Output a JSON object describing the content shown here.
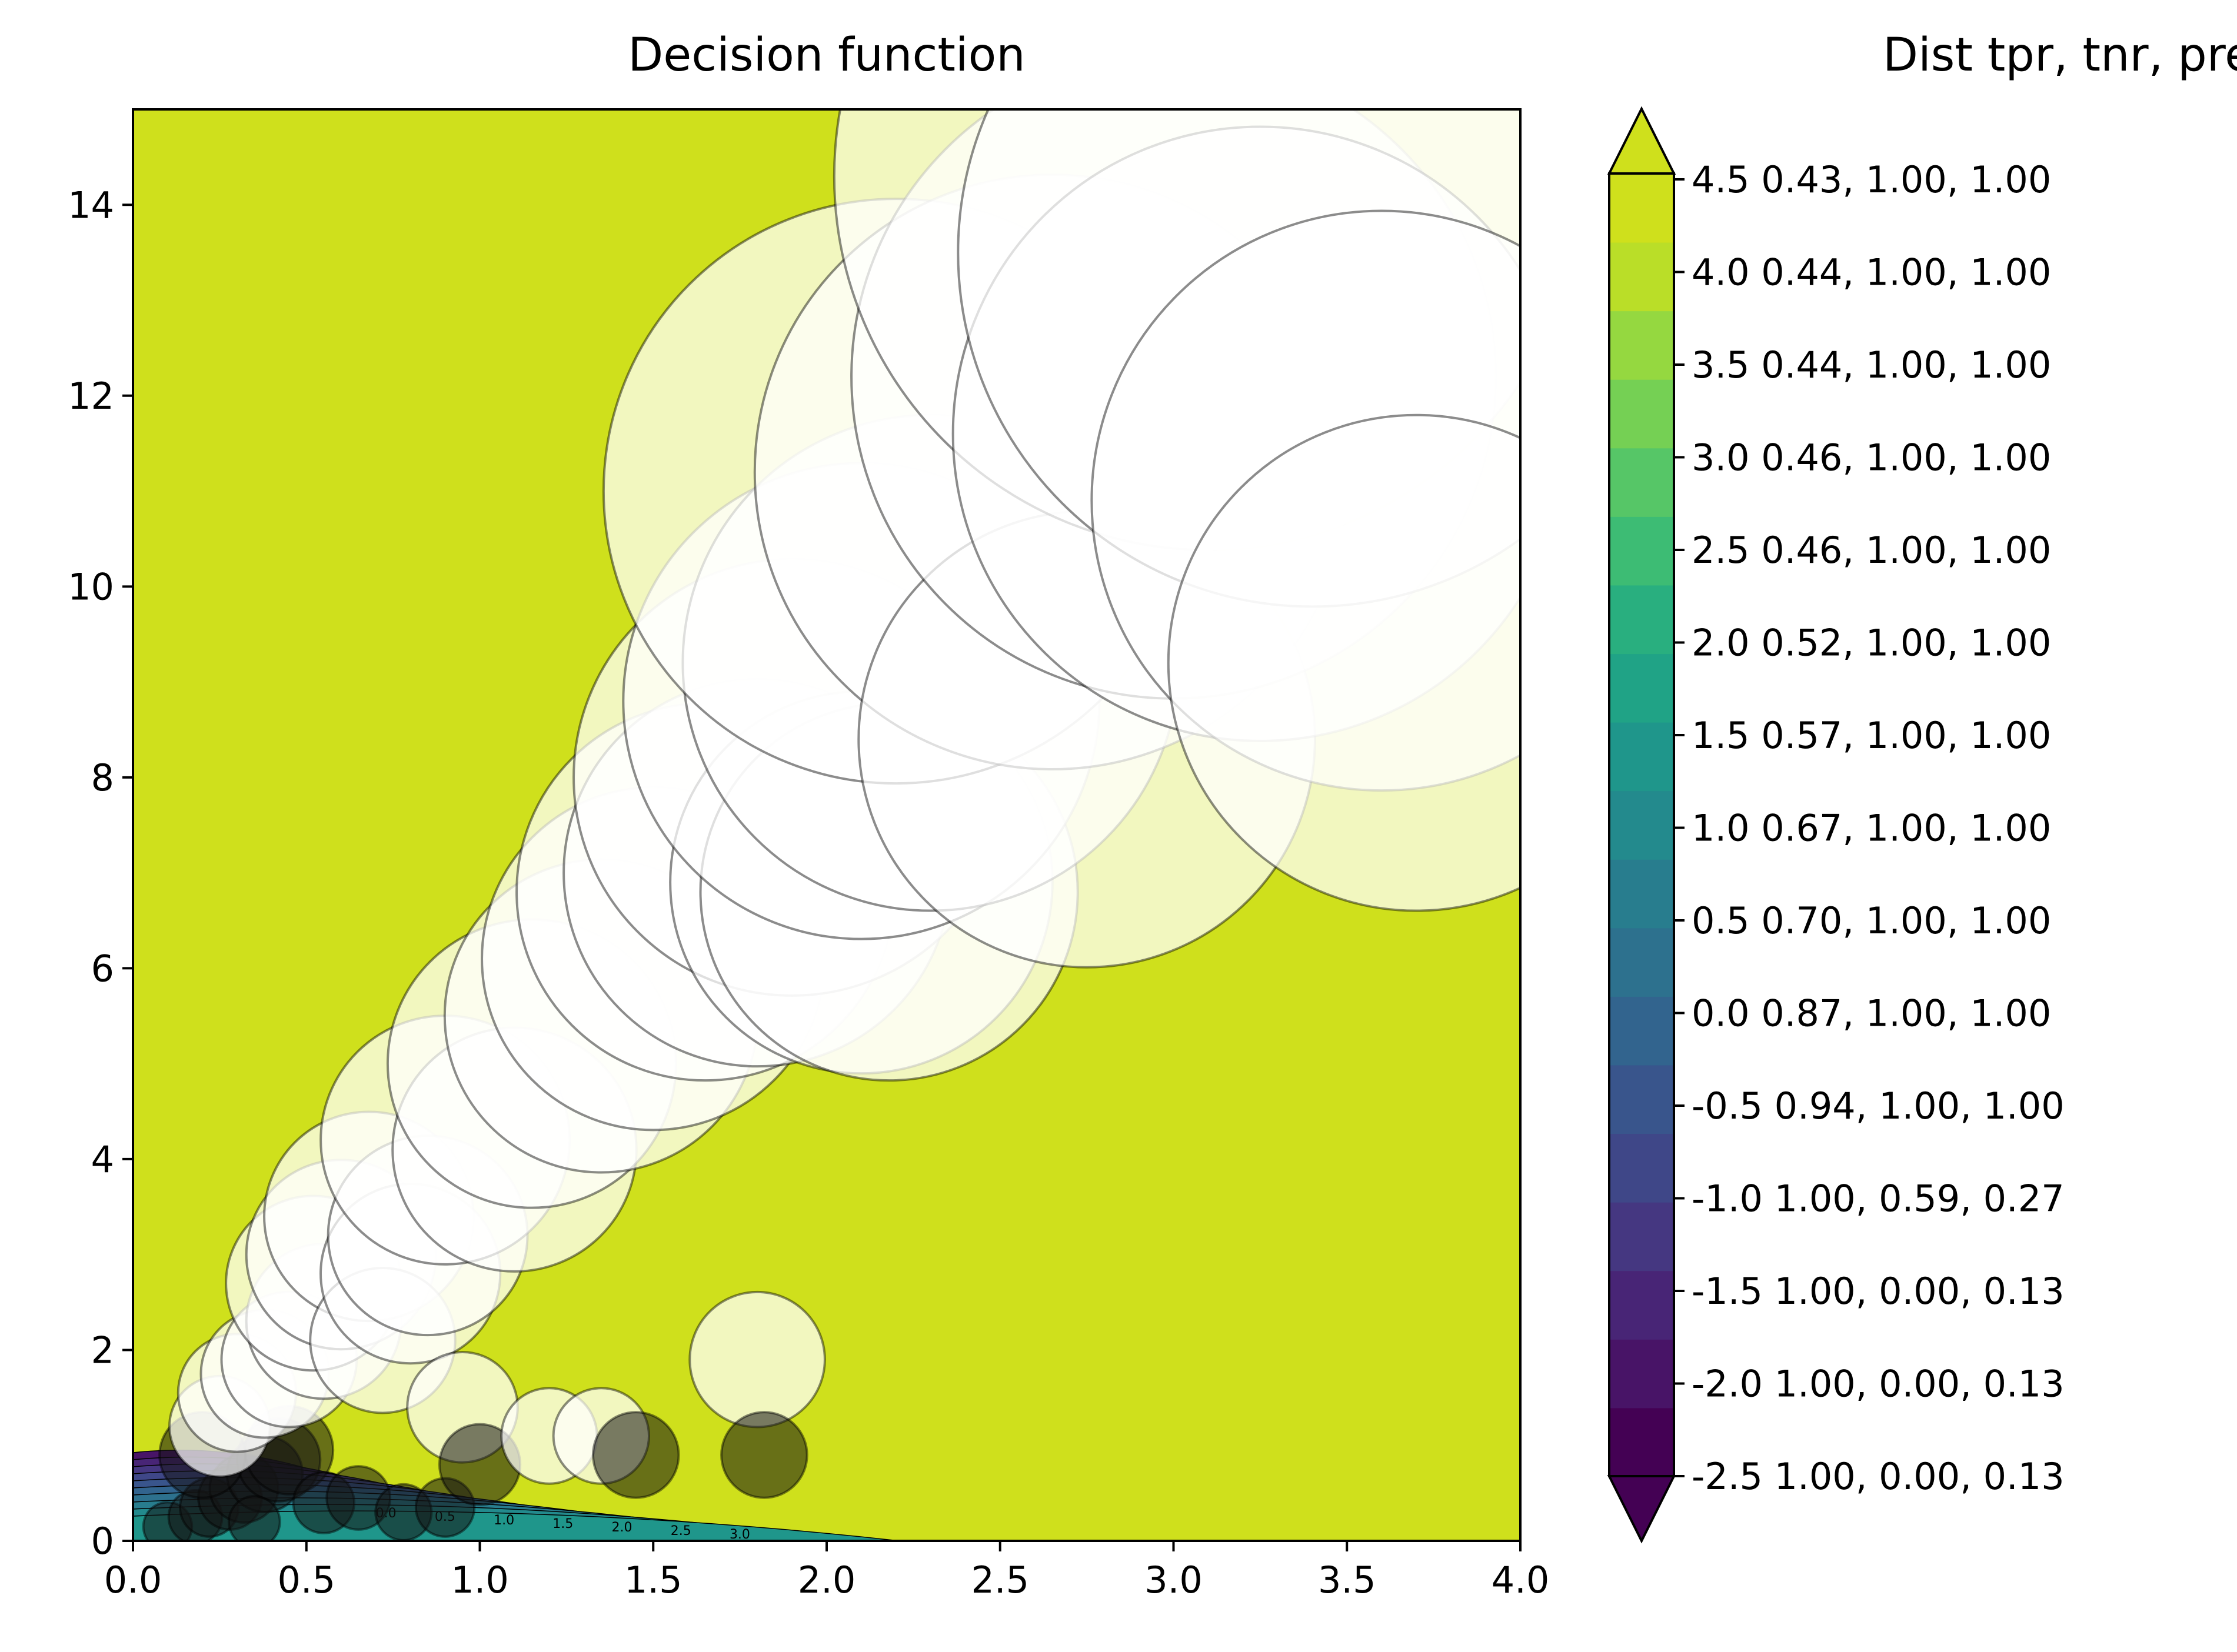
{
  "chart_data": {
    "type": "scatter",
    "title": "Decision function",
    "xlabel": "",
    "ylabel": "",
    "xlim": [
      0.0,
      4.0
    ],
    "ylim": [
      0,
      15
    ],
    "x_ticks": [
      "0.0",
      "0.5",
      "1.0",
      "1.5",
      "2.0",
      "2.5",
      "3.0",
      "3.5",
      "4.0"
    ],
    "y_ticks": [
      "0",
      "2",
      "4",
      "6",
      "8",
      "10",
      "12",
      "14"
    ],
    "background_color": "#cfe01c",
    "marker_face_color": "#ffffff",
    "marker_edge_color": "#000000",
    "contour_labels": [
      "0.0",
      "0.5",
      "1.0",
      "1.5",
      "2.0",
      "2.5",
      "3.0"
    ],
    "series": [
      {
        "values_note": "",
        "points": [
          {
            "x": 0.1,
            "y": 0.15
          },
          {
            "x": 0.18,
            "y": 0.25
          },
          {
            "x": 0.22,
            "y": 0.35
          },
          {
            "x": 0.28,
            "y": 0.45
          },
          {
            "x": 0.32,
            "y": 0.55
          },
          {
            "x": 0.38,
            "y": 0.7
          },
          {
            "x": 0.42,
            "y": 0.85
          },
          {
            "x": 0.45,
            "y": 0.95
          },
          {
            "x": 0.35,
            "y": 0.2
          },
          {
            "x": 0.55,
            "y": 0.4
          },
          {
            "x": 0.65,
            "y": 0.45
          },
          {
            "x": 0.78,
            "y": 0.3
          },
          {
            "x": 0.9,
            "y": 0.35
          },
          {
            "x": 0.2,
            "y": 0.9
          },
          {
            "x": 0.25,
            "y": 1.2
          },
          {
            "x": 0.3,
            "y": 1.55
          },
          {
            "x": 0.38,
            "y": 1.75
          },
          {
            "x": 0.45,
            "y": 1.9
          },
          {
            "x": 0.55,
            "y": 2.3
          },
          {
            "x": 0.52,
            "y": 2.7
          },
          {
            "x": 0.6,
            "y": 3.0
          },
          {
            "x": 0.68,
            "y": 3.4
          },
          {
            "x": 0.72,
            "y": 2.1
          },
          {
            "x": 0.8,
            "y": 2.8
          },
          {
            "x": 0.85,
            "y": 3.2
          },
          {
            "x": 0.9,
            "y": 4.2
          },
          {
            "x": 1.1,
            "y": 4.1
          },
          {
            "x": 1.15,
            "y": 5.0
          },
          {
            "x": 0.95,
            "y": 1.4
          },
          {
            "x": 1.0,
            "y": 0.8
          },
          {
            "x": 1.2,
            "y": 1.1
          },
          {
            "x": 1.35,
            "y": 1.1
          },
          {
            "x": 1.45,
            "y": 0.9
          },
          {
            "x": 1.8,
            "y": 1.9
          },
          {
            "x": 1.82,
            "y": 0.9
          },
          {
            "x": 1.35,
            "y": 5.5
          },
          {
            "x": 1.5,
            "y": 6.1
          },
          {
            "x": 1.65,
            "y": 6.8
          },
          {
            "x": 1.8,
            "y": 7.0
          },
          {
            "x": 1.9,
            "y": 8.0
          },
          {
            "x": 2.1,
            "y": 6.9
          },
          {
            "x": 2.18,
            "y": 6.8
          },
          {
            "x": 2.1,
            "y": 8.8
          },
          {
            "x": 2.3,
            "y": 9.2
          },
          {
            "x": 2.2,
            "y": 11.0
          },
          {
            "x": 2.65,
            "y": 11.2
          },
          {
            "x": 2.75,
            "y": 8.4
          },
          {
            "x": 3.0,
            "y": 12.2
          },
          {
            "x": 3.1,
            "y": 14.3
          },
          {
            "x": 3.25,
            "y": 11.6
          },
          {
            "x": 3.4,
            "y": 13.5
          },
          {
            "x": 3.6,
            "y": 10.9
          },
          {
            "x": 3.7,
            "y": 9.2
          }
        ]
      }
    ]
  },
  "colorbar": {
    "title": "Dist  tpr, tnr, prec",
    "extend": "both",
    "bands": [
      {
        "color": "#440154"
      },
      {
        "color": "#481467"
      },
      {
        "color": "#482576"
      },
      {
        "color": "#453781"
      },
      {
        "color": "#3f4788"
      },
      {
        "color": "#39558c"
      },
      {
        "color": "#32648e"
      },
      {
        "color": "#2d718e"
      },
      {
        "color": "#287d8e"
      },
      {
        "color": "#238a8d"
      },
      {
        "color": "#1f968b"
      },
      {
        "color": "#20a386"
      },
      {
        "color": "#29af7f"
      },
      {
        "color": "#3dbc74"
      },
      {
        "color": "#56c667"
      },
      {
        "color": "#75d054"
      },
      {
        "color": "#95d840"
      },
      {
        "color": "#bade28"
      },
      {
        "color": "#cfe01c"
      }
    ],
    "under_color": "#440154",
    "over_color": "#cfe01c",
    "tick_labels": [
      "-2.5 1.00, 0.00, 0.13",
      "-2.0 1.00, 0.00, 0.13",
      "-1.5 1.00, 0.00, 0.13",
      "-1.0 1.00, 0.59, 0.27",
      "-0.5 0.94, 1.00, 1.00",
      "0.0 0.87, 1.00, 1.00",
      "0.5 0.70, 1.00, 1.00",
      "1.0 0.67, 1.00, 1.00",
      "1.5 0.57, 1.00, 1.00",
      "2.0 0.52, 1.00, 1.00",
      "2.5 0.46, 1.00, 1.00",
      "3.0 0.46, 1.00, 1.00",
      "3.5 0.44, 1.00, 1.00",
      "4.0 0.44, 1.00, 1.00",
      "4.5 0.43, 1.00, 1.00"
    ]
  }
}
